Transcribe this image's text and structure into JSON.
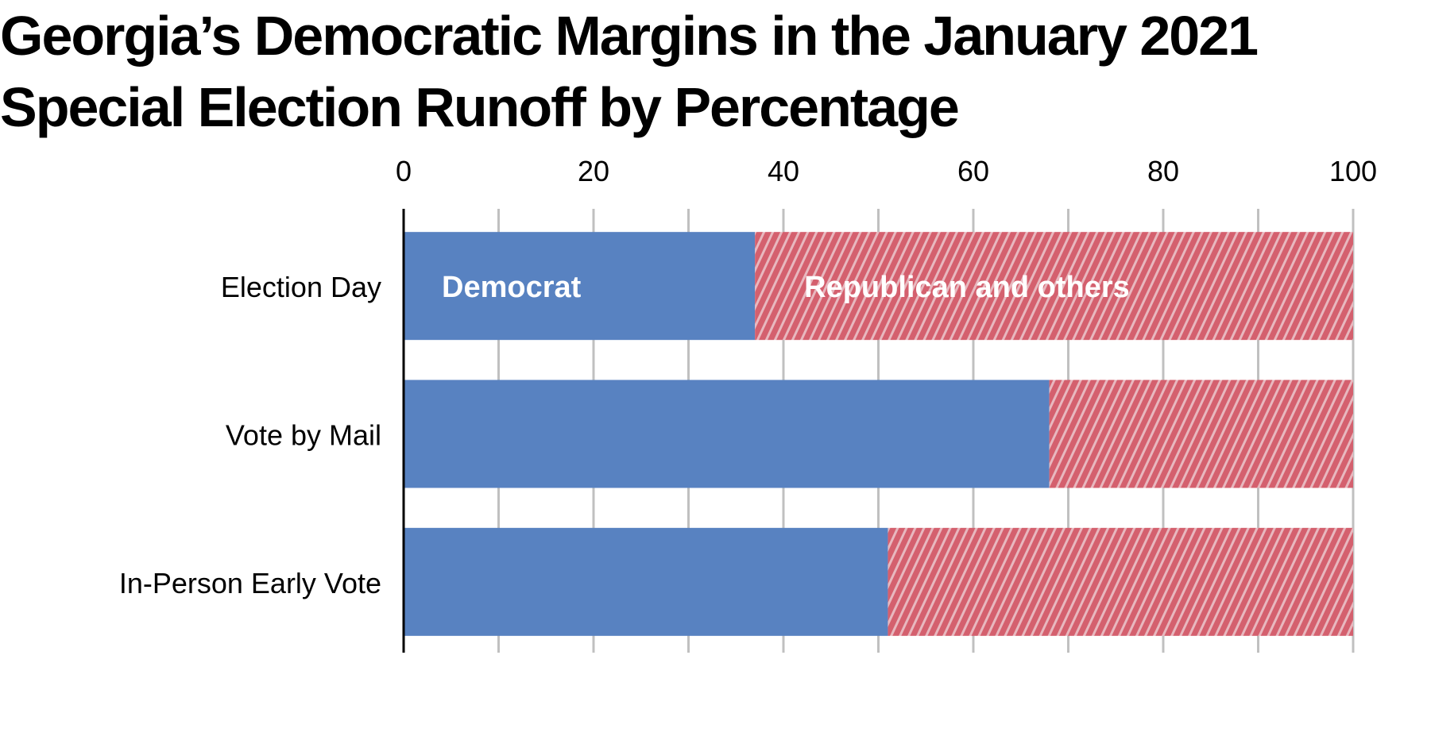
{
  "title_lines": [
    "Georgia’s Democratic Margins in the January 2021",
    "Special Election Runoff by Percentage"
  ],
  "chart_data": {
    "type": "bar",
    "orientation": "horizontal",
    "stacked": true,
    "title": "Georgia’s Democratic Margins in the January 2021 Special Election Runoff by Percentage",
    "categories": [
      "Election Day",
      "Vote by Mail",
      "In-Person Early Vote"
    ],
    "series": [
      {
        "name": "Democrat",
        "values": [
          37,
          68,
          51
        ],
        "color": "#5882c1",
        "pattern": "solid"
      },
      {
        "name": "Republican and others",
        "values": [
          63,
          32,
          49
        ],
        "color": "#d4606e",
        "pattern": "diagonal-hatch"
      }
    ],
    "xlim": [
      0,
      100
    ],
    "xticks": [
      0,
      20,
      40,
      60,
      80,
      100
    ],
    "x_axis_position": "top",
    "grid": true,
    "gridline_color": "#c0c0c0",
    "legend": "inside-first-bar"
  }
}
